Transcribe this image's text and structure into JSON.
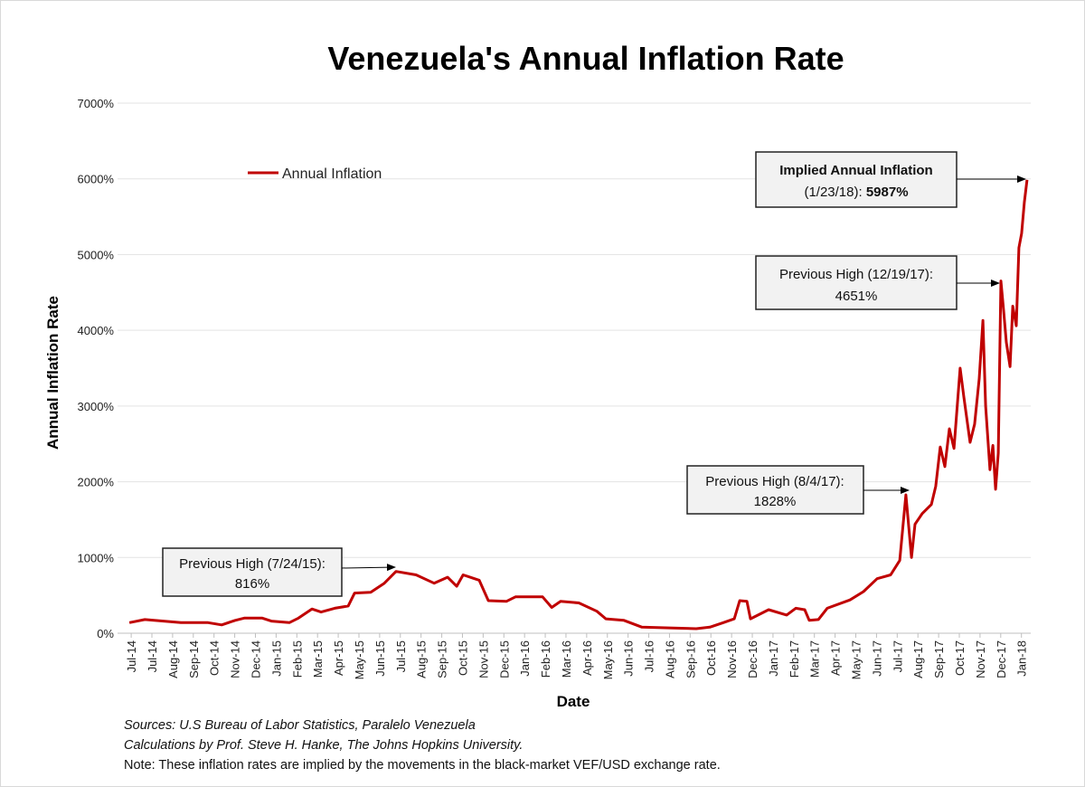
{
  "chart_data": {
    "type": "line",
    "title": "Venezuela's Annual Inflation Rate",
    "xlabel": "Date",
    "ylabel": "Annual Inflation Rate",
    "ylim": [
      0,
      7000
    ],
    "xlim": [
      -0.66,
      43.45
    ],
    "grid": true,
    "legend_placement": "top-left",
    "yticks": [
      0,
      1000,
      2000,
      3000,
      4000,
      5000,
      6000,
      7000
    ],
    "ytick_labels": [
      "0%",
      "1000%",
      "2000%",
      "3000%",
      "4000%",
      "5000%",
      "6000%",
      "7000%"
    ],
    "x_note": "x values are positions in tick-label index units",
    "xtick_labels": [
      "Jul-14",
      "Jul-14",
      "Aug-14",
      "Sep-14",
      "Oct-14",
      "Nov-14",
      "Dec-14",
      "Jan-15",
      "Feb-15",
      "Mar-15",
      "Apr-15",
      "May-15",
      "Jun-15",
      "Jul-15",
      "Aug-15",
      "Sep-15",
      "Oct-15",
      "Nov-15",
      "Dec-15",
      "Jan-16",
      "Feb-16",
      "Mar-16",
      "Apr-16",
      "May-16",
      "Jun-16",
      "Jul-16",
      "Aug-16",
      "Sep-16",
      "Oct-16",
      "Nov-16",
      "Dec-16",
      "Jan-17",
      "Feb-17",
      "Mar-17",
      "Apr-17",
      "May-17",
      "Jun-17",
      "Jul-17",
      "Aug-17",
      "Sep-17",
      "Oct-17",
      "Nov-17",
      "Dec-17",
      "Jan-18"
    ],
    "series": [
      {
        "name": "Annual Inflation",
        "color": "#c00000",
        "points": [
          [
            -0.09,
            140
          ],
          [
            0.66,
            180
          ],
          [
            2.4,
            140
          ],
          [
            3.71,
            140
          ],
          [
            4.37,
            110
          ],
          [
            5.02,
            170
          ],
          [
            5.46,
            200
          ],
          [
            6.33,
            200
          ],
          [
            6.77,
            160
          ],
          [
            7.64,
            140
          ],
          [
            8.08,
            200
          ],
          [
            8.73,
            320
          ],
          [
            9.17,
            280
          ],
          [
            9.83,
            330
          ],
          [
            10.48,
            360
          ],
          [
            10.79,
            530
          ],
          [
            11.57,
            540
          ],
          [
            12.23,
            660
          ],
          [
            12.79,
            816
          ],
          [
            13.76,
            770
          ],
          [
            14.63,
            660
          ],
          [
            15.28,
            740
          ],
          [
            15.72,
            620
          ],
          [
            16.03,
            770
          ],
          [
            16.81,
            700
          ],
          [
            17.25,
            430
          ],
          [
            18.12,
            420
          ],
          [
            18.56,
            480
          ],
          [
            19.87,
            480
          ],
          [
            20.31,
            340
          ],
          [
            20.74,
            420
          ],
          [
            21.62,
            400
          ],
          [
            22.49,
            290
          ],
          [
            22.93,
            190
          ],
          [
            23.8,
            170
          ],
          [
            24.67,
            80
          ],
          [
            25.98,
            70
          ],
          [
            27.29,
            60
          ],
          [
            27.95,
            80
          ],
          [
            28.6,
            140
          ],
          [
            29.13,
            190
          ],
          [
            29.39,
            430
          ],
          [
            29.74,
            420
          ],
          [
            29.91,
            190
          ],
          [
            30.79,
            310
          ],
          [
            31.66,
            240
          ],
          [
            32.1,
            330
          ],
          [
            32.53,
            310
          ],
          [
            32.75,
            170
          ],
          [
            33.19,
            180
          ],
          [
            33.62,
            330
          ],
          [
            34.72,
            440
          ],
          [
            35.37,
            550
          ],
          [
            36.03,
            720
          ],
          [
            36.68,
            770
          ],
          [
            37.12,
            960
          ],
          [
            37.42,
            1828
          ],
          [
            37.69,
            1000
          ],
          [
            37.86,
            1440
          ],
          [
            38.21,
            1580
          ],
          [
            38.65,
            1700
          ],
          [
            38.86,
            1940
          ],
          [
            39.08,
            2460
          ],
          [
            39.3,
            2200
          ],
          [
            39.52,
            2700
          ],
          [
            39.74,
            2440
          ],
          [
            40.04,
            3500
          ],
          [
            40.22,
            3120
          ],
          [
            40.52,
            2520
          ],
          [
            40.74,
            2760
          ],
          [
            40.96,
            3360
          ],
          [
            41.14,
            4130
          ],
          [
            41.27,
            3000
          ],
          [
            41.48,
            2160
          ],
          [
            41.62,
            2480
          ],
          [
            41.75,
            1900
          ],
          [
            41.88,
            2380
          ],
          [
            42.01,
            4651
          ],
          [
            42.14,
            4260
          ],
          [
            42.27,
            3840
          ],
          [
            42.45,
            3520
          ],
          [
            42.58,
            4320
          ],
          [
            42.75,
            4060
          ],
          [
            42.88,
            5090
          ],
          [
            43.01,
            5280
          ],
          [
            43.14,
            5690
          ],
          [
            43.27,
            5987
          ]
        ]
      }
    ],
    "annotations": [
      {
        "line1": "Previous High (7/24/15):",
        "line2": "816%",
        "x": 12.79,
        "y": 816
      },
      {
        "line1": "Previous High (8/4/17):",
        "line2": "1828%",
        "x": 37.42,
        "y": 1828
      },
      {
        "line1": "Previous High (12/19/17):",
        "line2": "4651%",
        "x": 42.01,
        "y": 4651
      },
      {
        "line1": "Implied Annual Inflation",
        "line2a": "(1/23/18): ",
        "line2b": "5987%",
        "x": 43.27,
        "y": 5987
      }
    ],
    "footnotes": [
      "Sources: U.S Bureau of Labor Statistics, Paralelo Venezuela",
      "Calculations by Prof. Steve H. Hanke, The Johns Hopkins University.",
      "Note: These inflation rates are implied by the movements in the black-market VEF/USD exchange rate."
    ]
  }
}
